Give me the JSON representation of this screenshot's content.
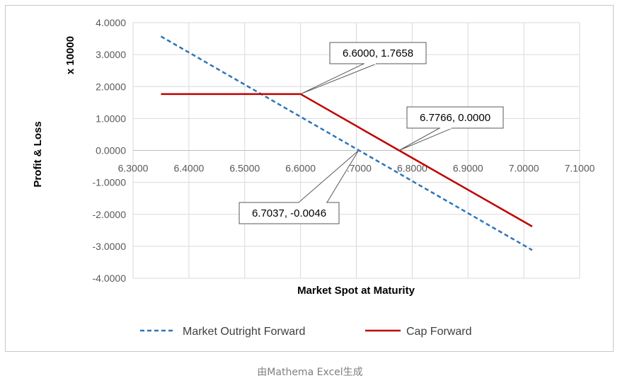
{
  "caption": "由Mathema Excel生成",
  "chart_data": {
    "type": "line",
    "title": "",
    "xlabel": "Market Spot at Maturity",
    "ylabel": "Profit & Loss",
    "y_unit_label": "x 10000",
    "xlim": [
      6.3,
      7.1
    ],
    "ylim": [
      -4,
      4
    ],
    "x_ticks": [
      6.3,
      6.4,
      6.5,
      6.6,
      6.7,
      6.8,
      6.9,
      7.0,
      7.1
    ],
    "x_tick_labels": [
      "6.3000",
      "6.4000",
      "6.5000",
      "6.6000",
      "6.7000",
      "6.8000",
      "6.9000",
      "7.0000",
      "7.1000"
    ],
    "y_ticks": [
      4,
      3,
      2,
      1,
      0,
      -1,
      -2,
      -3,
      -4
    ],
    "y_tick_labels": [
      "4.0000",
      "3.0000",
      "2.0000",
      "1.0000",
      "0.0000",
      "-1.0000",
      "-2.0000",
      "-3.0000",
      "-4.0000"
    ],
    "grid": true,
    "legend_position": "bottom",
    "series": [
      {
        "name": "Market Outright Forward",
        "color": "#2e75b6",
        "style": "dashed",
        "points": [
          [
            6.35,
            3.57
          ],
          [
            7.015,
            -3.12
          ]
        ]
      },
      {
        "name": "Cap Forward",
        "color": "#c00000",
        "style": "solid",
        "points": [
          [
            6.35,
            1.7658
          ],
          [
            6.6,
            1.7658
          ],
          [
            6.7766,
            0.0
          ],
          [
            7.015,
            -2.38
          ]
        ]
      }
    ],
    "annotations": [
      {
        "label": "6.6000, 1.7658",
        "x": 6.6,
        "y": 1.7658
      },
      {
        "label": "6.7766, 0.0000",
        "x": 6.7766,
        "y": 0.0
      },
      {
        "label": "6.7037, -0.0046",
        "x": 6.7037,
        "y": -0.0046
      }
    ]
  }
}
